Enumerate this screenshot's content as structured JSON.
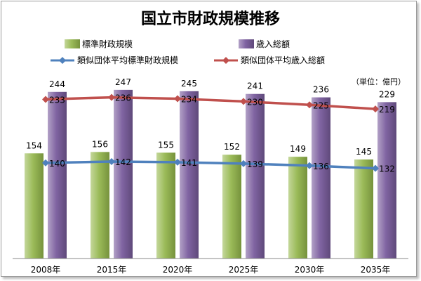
{
  "chart_data": {
    "type": "bar",
    "title": "国立市財政規模推移",
    "unit_label": "（単位：億円）",
    "categories": [
      "2008年",
      "2015年",
      "2020年",
      "2025年",
      "2030年",
      "2035年"
    ],
    "series": [
      {
        "name": "標準財政規模",
        "kind": "bar",
        "color": "#9bbb59",
        "values": [
          154,
          156,
          155,
          152,
          149,
          145
        ]
      },
      {
        "name": "歳入総額",
        "kind": "bar",
        "color": "#8064a2",
        "values": [
          244,
          247,
          245,
          241,
          236,
          229
        ]
      },
      {
        "name": "類似団体平均標準財政規模",
        "kind": "line",
        "color": "#4f81bd",
        "values": [
          140,
          142,
          141,
          139,
          136,
          132
        ]
      },
      {
        "name": "類似団体平均歳入総額",
        "kind": "line",
        "color": "#c0504d",
        "values": [
          233,
          236,
          234,
          230,
          225,
          219
        ]
      }
    ],
    "ylim": [
      0,
      250
    ],
    "grid": false,
    "legend_position": "top"
  }
}
